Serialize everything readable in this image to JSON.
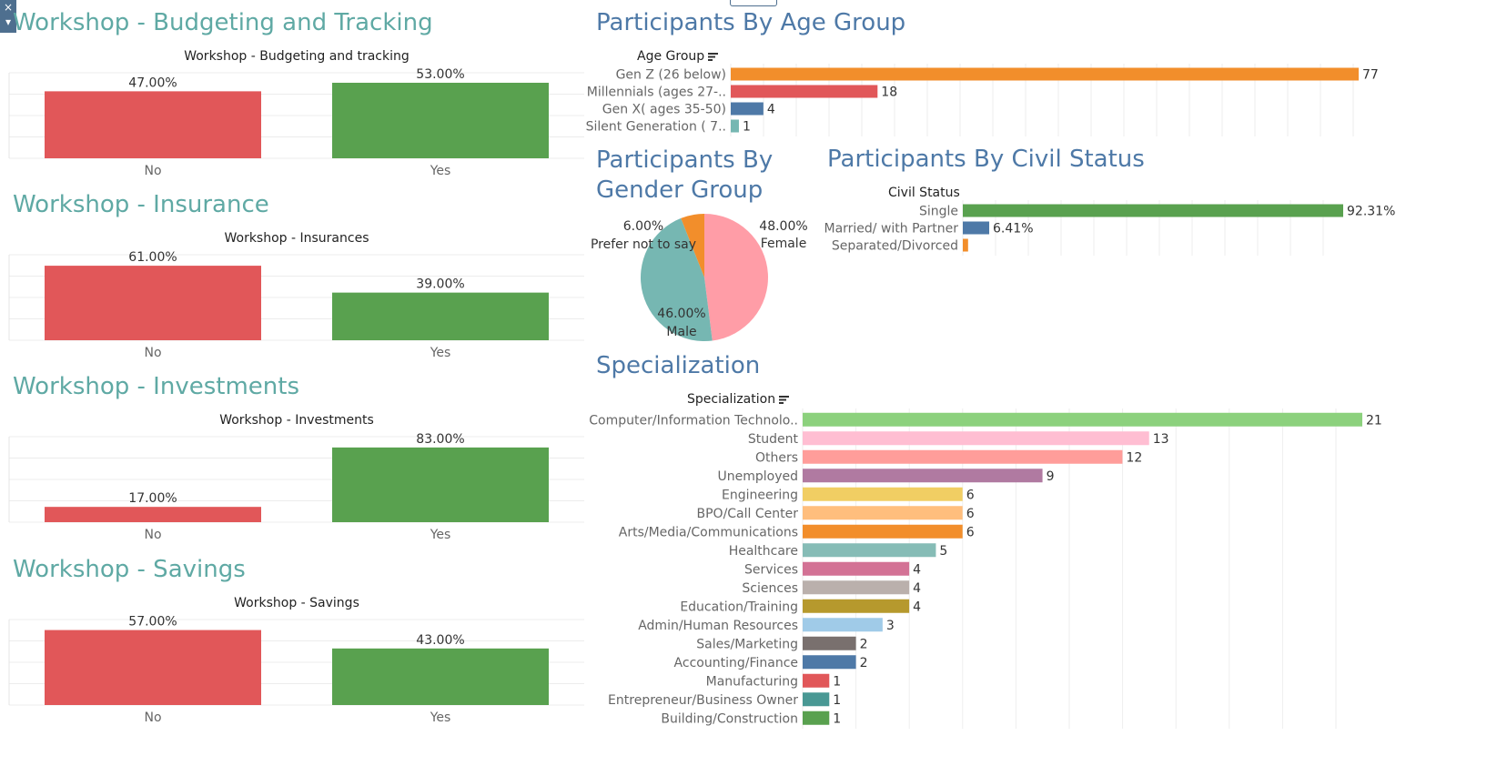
{
  "dismiss_glyph": "×",
  "dropdown_glyph": "▾",
  "workshops": [
    {
      "section_title": "Workshop - Budgeting and Tracking",
      "chart_title": "Workshop - Budgeting and tracking"
    },
    {
      "section_title": "Workshop - Insurance",
      "chart_title": "Workshop - Insurances"
    },
    {
      "section_title": "Workshop - Investments",
      "chart_title": "Workshop - Investments"
    },
    {
      "section_title": "Workshop - Savings",
      "chart_title": "Workshop - Savings"
    }
  ],
  "age": {
    "section_title": "Participants By Age Group",
    "header": "Age Group"
  },
  "gender": {
    "section_title_line1": "Participants By",
    "section_title_line2": "Gender Group"
  },
  "civil": {
    "section_title": "Participants By Civil Status",
    "header": "Civil Status"
  },
  "spec": {
    "section_title": "Specialization",
    "header": "Specialization"
  },
  "colors": {
    "no": "#e15759",
    "yes": "#59a14f",
    "teal_title": "#5fa9a4",
    "blue_title": "#4e79a7"
  },
  "chart_data": [
    {
      "type": "bar",
      "categories": [
        "No",
        "Yes"
      ],
      "values": [
        47.0,
        53.0
      ],
      "labels": [
        "47.00%",
        "53.00%"
      ],
      "title": "Workshop - Budgeting and tracking",
      "ylim": [
        0,
        60
      ]
    },
    {
      "type": "bar",
      "categories": [
        "No",
        "Yes"
      ],
      "values": [
        61.0,
        39.0
      ],
      "labels": [
        "61.00%",
        "39.00%"
      ],
      "title": "Workshop - Insurances",
      "ylim": [
        0,
        70
      ]
    },
    {
      "type": "bar",
      "categories": [
        "No",
        "Yes"
      ],
      "values": [
        17.0,
        83.0
      ],
      "labels": [
        "17.00%",
        "83.00%"
      ],
      "title": "Workshop - Investments",
      "ylim": [
        0,
        95
      ]
    },
    {
      "type": "bar",
      "categories": [
        "No",
        "Yes"
      ],
      "values": [
        57.0,
        43.0
      ],
      "labels": [
        "57.00%",
        "43.00%"
      ],
      "title": "Workshop - Savings",
      "ylim": [
        0,
        65
      ]
    },
    {
      "type": "bar",
      "orientation": "horizontal",
      "title": "Participants By Age Group",
      "categories": [
        "Gen Z (26 below)",
        "Millennials (ages 27-..",
        "Gen X( ages 35-50)",
        "Silent Generation ( 7.."
      ],
      "values": [
        77,
        18,
        4,
        1
      ],
      "colors": [
        "#f28e2b",
        "#e15759",
        "#4e79a7",
        "#76b7b2"
      ]
    },
    {
      "type": "pie",
      "title": "Participants By Gender Group",
      "categories": [
        "Female",
        "Male",
        "Prefer not to say"
      ],
      "values": [
        48.0,
        46.0,
        6.0
      ],
      "labels": [
        "48.00%",
        "46.00%",
        "6.00%"
      ],
      "colors": [
        "#ff9da7",
        "#76b7b2",
        "#f28e2b"
      ]
    },
    {
      "type": "bar",
      "orientation": "horizontal",
      "title": "Participants By Civil Status",
      "categories": [
        "Single",
        "Married/ with Partner",
        "Separated/Divorced"
      ],
      "values": [
        92.31,
        6.41,
        1.28
      ],
      "labels": [
        "92.31%",
        "6.41%",
        ""
      ],
      "colors": [
        "#59a14f",
        "#4e79a7",
        "#f28e2b"
      ]
    },
    {
      "type": "bar",
      "orientation": "horizontal",
      "title": "Specialization",
      "categories": [
        "Computer/Information Technolo..",
        "Student",
        "Others",
        "Unemployed",
        "Engineering",
        "BPO/Call Center",
        "Arts/Media/Communications",
        "Healthcare",
        "Services",
        "Sciences",
        "Education/Training",
        "Admin/Human Resources",
        "Sales/Marketing",
        "Accounting/Finance",
        "Manufacturing",
        "Entrepreneur/Business Owner",
        "Building/Construction"
      ],
      "values": [
        21,
        13,
        12,
        9,
        6,
        6,
        6,
        5,
        4,
        4,
        4,
        3,
        2,
        2,
        1,
        1,
        1
      ],
      "colors": [
        "#8cd17d",
        "#ffbed2",
        "#ff9d9a",
        "#b07aa1",
        "#f1ce63",
        "#ffbe7d",
        "#f28e2b",
        "#86bcb6",
        "#d37295",
        "#bab0ac",
        "#b6992d",
        "#a0cbe8",
        "#79706e",
        "#4e79a7",
        "#e15759",
        "#499894",
        "#59a14f"
      ]
    }
  ]
}
